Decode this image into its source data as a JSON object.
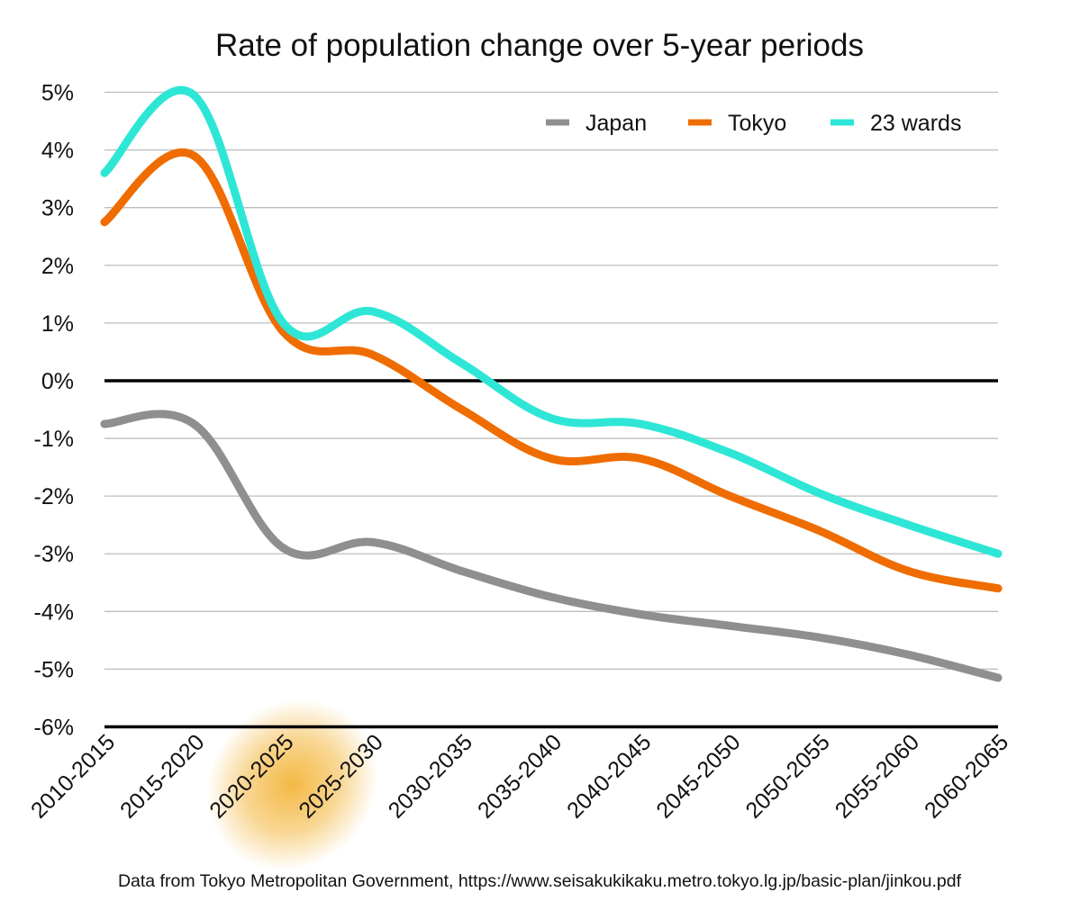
{
  "chart_data": {
    "type": "line",
    "title": "Rate of population change over 5-year periods",
    "source": "Data from Tokyo Metropolitan Government, https://www.seisakukikaku.metro.tokyo.lg.jp/basic-plan/jinkou.pdf",
    "categories": [
      "2010-2015",
      "2015-2020",
      "2020-2025",
      "2025-2030",
      "2030-2035",
      "2035-2040",
      "2040-2045",
      "2045-2050",
      "2050-2055",
      "2055-2060",
      "2060-2065"
    ],
    "highlight_category": "2020-2025",
    "highlight_color": "#f3b53a",
    "ylim": [
      -6,
      5
    ],
    "yticks": [
      5,
      4,
      3,
      2,
      1,
      0,
      -1,
      -2,
      -3,
      -4,
      -5,
      -6
    ],
    "ytick_labels": [
      "5%",
      "4%",
      "3%",
      "2%",
      "1%",
      "0%",
      "-1%",
      "-2%",
      "-3%",
      "-4%",
      "-5%",
      "-6%"
    ],
    "grid": true,
    "legend_position": "top-right",
    "series": [
      {
        "name": "Japan",
        "color": "#8f8f8f",
        "values": [
          -0.75,
          -0.75,
          -2.9,
          -2.8,
          -3.3,
          -3.75,
          -4.05,
          -4.25,
          -4.45,
          -4.75,
          -5.15
        ]
      },
      {
        "name": "Tokyo",
        "color": "#ef6c00",
        "values": [
          2.75,
          3.9,
          0.85,
          0.45,
          -0.5,
          -1.35,
          -1.35,
          -2.0,
          -2.6,
          -3.3,
          -3.6
        ]
      },
      {
        "name": "23 wards",
        "color": "#2ee6d6",
        "values": [
          3.6,
          4.95,
          1.0,
          1.2,
          0.3,
          -0.65,
          -0.75,
          -1.25,
          -1.95,
          -2.5,
          -3.0
        ]
      }
    ]
  }
}
